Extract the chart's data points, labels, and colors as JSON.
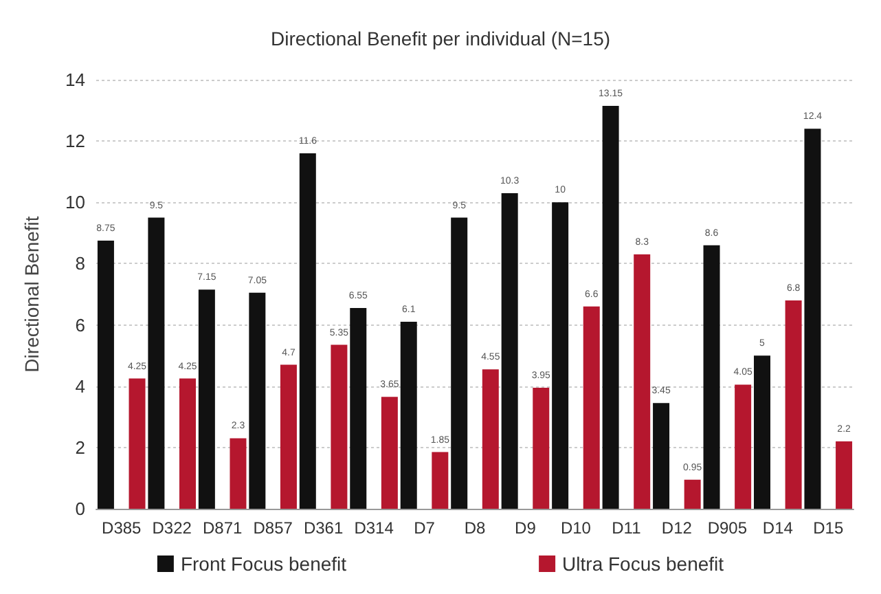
{
  "chart_data": {
    "type": "bar",
    "title": "Directional Benefit per individual (N=15)",
    "ylabel": "Directional Benefit",
    "categories": [
      "D385",
      "D322",
      "D871",
      "D857",
      "D361",
      "D314",
      "D7",
      "D8",
      "D9",
      "D10",
      "D11",
      "D12",
      "D905",
      "D14",
      "D15"
    ],
    "series": [
      {
        "name": "Front Focus benefit",
        "color": "#111111",
        "values": [
          8.75,
          9.5,
          7.15,
          7.05,
          11.6,
          6.55,
          6.1,
          9.5,
          10.3,
          10,
          13.15,
          3.45,
          8.6,
          5,
          12.4
        ]
      },
      {
        "name": "Ultra Focus benefit",
        "color": "#b5172e",
        "values": [
          4.25,
          4.25,
          2.3,
          4.7,
          5.35,
          3.65,
          1.85,
          4.55,
          3.95,
          6.6,
          8.3,
          0.95,
          4.05,
          6.8,
          2.2
        ]
      }
    ],
    "ylim": [
      0,
      14
    ],
    "yticks": [
      0,
      2,
      4,
      6,
      8,
      10,
      12,
      14
    ],
    "grid": "y",
    "legend": "bottom",
    "data_labels": true
  }
}
